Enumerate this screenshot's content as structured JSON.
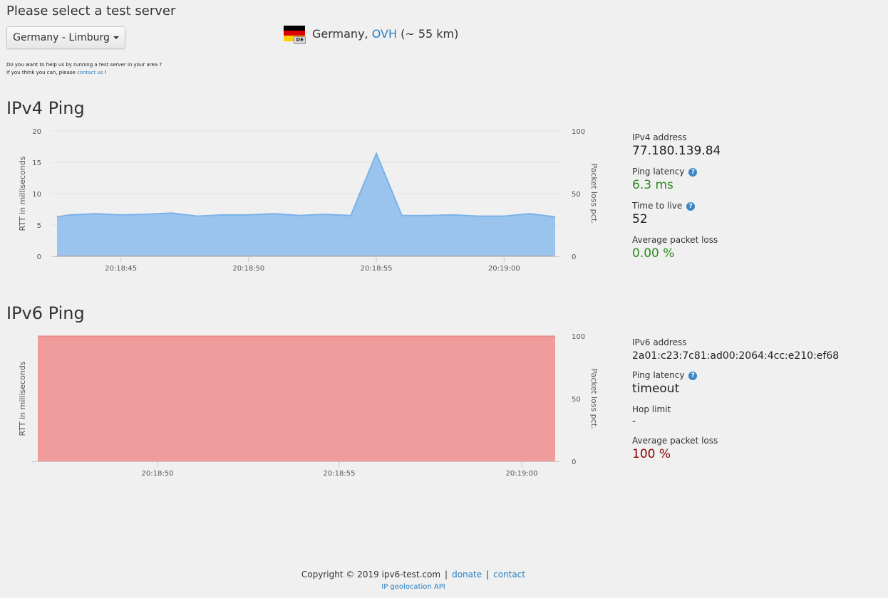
{
  "header": {
    "title": "Please select a test server",
    "server_select": "Germany - Limburg",
    "server_country": "Germany,",
    "server_provider": "OVH",
    "server_distance": "(~ 55 km)",
    "flag_code": "DE",
    "flag_colors": [
      "#000000",
      "#dd0000",
      "#ffce00"
    ],
    "help_line1": "Do you want to help us by running a test server in your area ?",
    "help_line2_prefix": "If you think you can, please",
    "help_line2_link": "contact us",
    "help_line2_suffix": "!"
  },
  "ipv4": {
    "title": "IPv4 Ping",
    "address_label": "IPv4 address",
    "address": "77.180.139.84",
    "latency_label": "Ping latency",
    "latency": "6.3 ms",
    "ttl_label": "Time to live",
    "ttl": "52",
    "loss_label": "Average packet loss",
    "loss": "0.00 %"
  },
  "ipv6": {
    "title": "IPv6 Ping",
    "address_label": "IPv6 address",
    "address": "2a01:c23:7c81:ad00:2064:4cc:e210:ef68",
    "latency_label": "Ping latency",
    "latency": "timeout",
    "hop_label": "Hop limit",
    "hop": "-",
    "loss_label": "Average packet loss",
    "loss": "100 %"
  },
  "footer": {
    "copyright": "Copyright © 2019 ipv6-test.com",
    "donate": "donate",
    "contact": "contact",
    "geo": "IP geolocation API"
  },
  "colors": {
    "rtt_fill": "#9ac4ee",
    "rtt_line": "#7ab3e8",
    "loss_fill": "#f09c9c",
    "loss_line": "#e87070",
    "good": "#2c8a1e",
    "bad": "#8b0000",
    "link": "#2a7fc1"
  },
  "chart_data": [
    {
      "type": "area",
      "title": "IPv4 Ping",
      "ylabel": "RTT in milliseconds",
      "y2label": "Packet loss pct.",
      "ylim": [
        0,
        20
      ],
      "y2lim": [
        0,
        100
      ],
      "yticks": [
        0,
        5,
        10,
        15,
        20
      ],
      "y2ticks": [
        0,
        50,
        100
      ],
      "x_ticks": [
        "20:18:45",
        "20:18:50",
        "20:18:55",
        "20:19:00"
      ],
      "x": [
        "20:18:42.5",
        "20:18:43",
        "20:18:44",
        "20:18:45",
        "20:18:46",
        "20:18:47",
        "20:18:48",
        "20:18:49",
        "20:18:50",
        "20:18:51",
        "20:18:52",
        "20:18:53",
        "20:18:54",
        "20:18:55",
        "20:18:56",
        "20:18:57",
        "20:18:58",
        "20:18:59",
        "20:19:00",
        "20:19:01",
        "20:19:02"
      ],
      "series": [
        {
          "values": [
            6.3,
            6.6,
            6.8,
            6.6,
            6.7,
            6.9,
            6.4,
            6.6,
            6.6,
            6.8,
            6.5,
            6.7,
            6.5,
            16.4,
            6.5,
            6.5,
            6.6,
            6.4,
            6.4,
            6.8,
            6.3
          ]
        },
        {
          "values": [
            0,
            0,
            0,
            0,
            0,
            0,
            0,
            0,
            0,
            0,
            0,
            0,
            0,
            0,
            0,
            0,
            0,
            0,
            0,
            0,
            0
          ]
        }
      ],
      "grid": true
    },
    {
      "type": "area",
      "title": "IPv6 Ping",
      "ylabel": "RTT in milliseconds",
      "y2label": "Packet loss pct.",
      "y2lim": [
        0,
        100
      ],
      "y2ticks": [
        0,
        50,
        100
      ],
      "x_ticks": [
        "20:18:50",
        "20:18:55",
        "20:19:00"
      ],
      "series": [
        {
          "values": [
            100,
            100
          ]
        }
      ],
      "grid": false
    }
  ]
}
